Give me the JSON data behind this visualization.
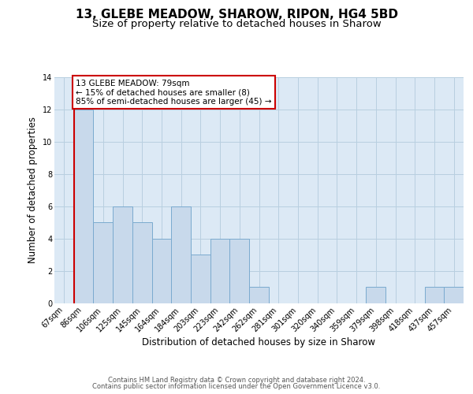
{
  "title": "13, GLEBE MEADOW, SHAROW, RIPON, HG4 5BD",
  "subtitle": "Size of property relative to detached houses in Sharow",
  "xlabel": "Distribution of detached houses by size in Sharow",
  "ylabel": "Number of detached properties",
  "bar_labels": [
    "67sqm",
    "86sqm",
    "106sqm",
    "125sqm",
    "145sqm",
    "164sqm",
    "184sqm",
    "203sqm",
    "223sqm",
    "242sqm",
    "262sqm",
    "281sqm",
    "301sqm",
    "320sqm",
    "340sqm",
    "359sqm",
    "379sqm",
    "398sqm",
    "418sqm",
    "437sqm",
    "457sqm"
  ],
  "bar_heights": [
    0,
    12,
    5,
    6,
    5,
    4,
    6,
    3,
    4,
    4,
    1,
    0,
    0,
    0,
    0,
    0,
    1,
    0,
    0,
    1,
    1
  ],
  "bar_color": "#c8d9eb",
  "bar_edge_color": "#7aaacf",
  "red_line_color": "#cc0000",
  "red_line_x": 0.5,
  "ylim_max": 14,
  "yticks": [
    0,
    2,
    4,
    6,
    8,
    10,
    12,
    14
  ],
  "grid_color": "#b8cfe0",
  "bg_color": "#dce9f5",
  "annotation_title": "13 GLEBE MEADOW: 79sqm",
  "annotation_line1": "← 15% of detached houses are smaller (8)",
  "annotation_line2": "85% of semi-detached houses are larger (45) →",
  "annotation_edge_color": "#cc0000",
  "annotation_bg": "#ffffff",
  "footer1": "Contains HM Land Registry data © Crown copyright and database right 2024.",
  "footer2": "Contains public sector information licensed under the Open Government Licence v3.0.",
  "title_fontsize": 11,
  "subtitle_fontsize": 9.5,
  "ylabel_fontsize": 8.5,
  "xlabel_fontsize": 8.5,
  "annot_fontsize": 7.5,
  "tick_fontsize": 7,
  "footer_fontsize": 6
}
